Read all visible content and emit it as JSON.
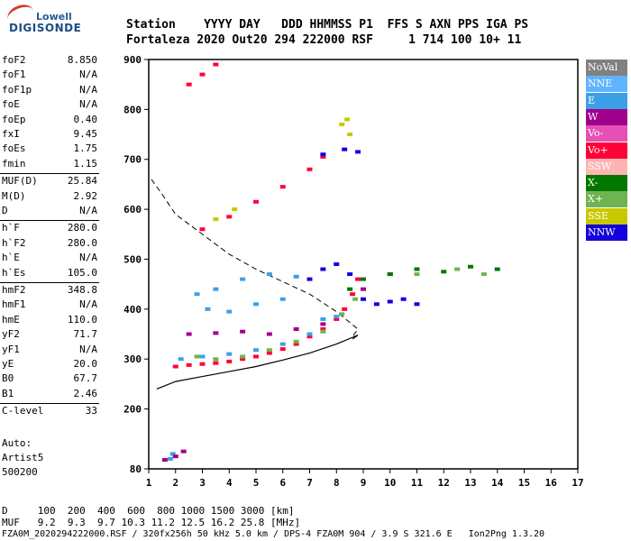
{
  "logo": {
    "top": "Lowell",
    "bottom": "DIGISONDE"
  },
  "header": {
    "line1": "Station    YYYY DAY   DDD HHMMSS P1  FFS S AXN PPS IGA PS",
    "line2": "Fortaleza 2020 Out20 294 222000 RSF     1 714 100 10+ 11"
  },
  "params": [
    {
      "k": "foF2",
      "v": "8.850"
    },
    {
      "k": "foF1",
      "v": "N/A"
    },
    {
      "k": "foF1p",
      "v": "N/A"
    },
    {
      "k": "foE",
      "v": "N/A"
    },
    {
      "k": "foEp",
      "v": "0.40"
    },
    {
      "k": "fxI",
      "v": "9.45"
    },
    {
      "k": "foEs",
      "v": "1.75"
    },
    {
      "k": "fmin",
      "v": "1.15"
    },
    {
      "k": "MUF(D)",
      "v": "25.84"
    },
    {
      "k": "M(D)",
      "v": "2.92"
    },
    {
      "k": "D",
      "v": "N/A"
    },
    {
      "k": "h`F",
      "v": "280.0"
    },
    {
      "k": "h`F2",
      "v": "280.0"
    },
    {
      "k": "h`E",
      "v": "N/A"
    },
    {
      "k": "h`Es",
      "v": "105.0"
    },
    {
      "k": "hmF2",
      "v": "348.8"
    },
    {
      "k": "hmF1",
      "v": "N/A"
    },
    {
      "k": "hmE",
      "v": "110.0"
    },
    {
      "k": "yF2",
      "v": "71.7"
    },
    {
      "k": "yF1",
      "v": "N/A"
    },
    {
      "k": "yE",
      "v": "20.0"
    },
    {
      "k": "B0",
      "v": "67.7"
    },
    {
      "k": "B1",
      "v": "2.46"
    },
    {
      "k": "C-level",
      "v": "33"
    }
  ],
  "auto": {
    "l1": "Auto:",
    "l2": "Artist5",
    "l3": "500200"
  },
  "bottom": {
    "d_row": "D     100  200  400  600  800 1000 1500 3000 [km]",
    "muf_row": "MUF   9.2  9.3  9.7 10.3 11.2 12.5 16.2 25.8 [MHz]",
    "file_row": "FZA0M_2020294222000.RSF / 320fx256h 50 kHz 5.0 km / DPS-4 FZA0M 904 / 3.9 S 321.6 E   Ion2Png 1.3.20"
  },
  "legend": [
    {
      "label": "NoVal",
      "color": "#808080"
    },
    {
      "label": "NNE",
      "color": "#5fb4ff"
    },
    {
      "label": "E",
      "color": "#3ca0e6"
    },
    {
      "label": "W",
      "color": "#a0008c"
    },
    {
      "label": "Vo-",
      "color": "#e650b4"
    },
    {
      "label": "Vo+",
      "color": "#ff0037"
    },
    {
      "label": "SSW",
      "color": "#ffb4b4"
    },
    {
      "label": "X-",
      "color": "#007800"
    },
    {
      "label": "X+",
      "color": "#6eb450"
    },
    {
      "label": "SSE",
      "color": "#c8c800"
    },
    {
      "label": "NNW",
      "color": "#1400dc"
    }
  ],
  "chart_data": {
    "type": "scatter",
    "title": "",
    "xlabel": "",
    "ylabel": "",
    "xlim": [
      1,
      17
    ],
    "ylim": [
      80,
      900
    ],
    "x_ticks": [
      1,
      2,
      3,
      4,
      5,
      6,
      7,
      8,
      9,
      10,
      11,
      12,
      13,
      14,
      15,
      16,
      17
    ],
    "y_ticks": [
      80,
      200,
      300,
      400,
      500,
      600,
      700,
      800,
      900
    ],
    "series": [
      {
        "name": "Vo+",
        "color": "#ff0037",
        "points": [
          [
            2.0,
            285
          ],
          [
            2.5,
            288
          ],
          [
            3,
            290
          ],
          [
            3.5,
            292
          ],
          [
            4,
            295
          ],
          [
            4.5,
            300
          ],
          [
            5,
            305
          ],
          [
            5.5,
            312
          ],
          [
            6,
            320
          ],
          [
            6.5,
            330
          ],
          [
            7,
            345
          ],
          [
            7.5,
            360
          ],
          [
            8,
            380
          ],
          [
            8.3,
            400
          ],
          [
            8.6,
            430
          ],
          [
            8.8,
            460
          ],
          [
            3,
            560
          ],
          [
            4,
            585
          ],
          [
            5,
            615
          ],
          [
            6,
            645
          ],
          [
            7,
            680
          ],
          [
            7.5,
            705
          ],
          [
            2.5,
            850
          ],
          [
            3,
            870
          ],
          [
            3.5,
            890
          ]
        ]
      },
      {
        "name": "E",
        "color": "#3ca0e6",
        "points": [
          [
            2.2,
            300
          ],
          [
            3,
            305
          ],
          [
            4,
            310
          ],
          [
            5,
            318
          ],
          [
            6,
            330
          ],
          [
            7,
            350
          ],
          [
            8,
            385
          ],
          [
            2.8,
            430
          ],
          [
            3.5,
            440
          ],
          [
            4.5,
            460
          ],
          [
            5.5,
            470
          ],
          [
            6.5,
            465
          ],
          [
            3.2,
            400
          ],
          [
            4,
            395
          ],
          [
            5,
            410
          ],
          [
            6,
            420
          ],
          [
            7.5,
            380
          ],
          [
            1.8,
            100
          ],
          [
            1.9,
            110
          ]
        ]
      },
      {
        "name": "W",
        "color": "#a0008c",
        "points": [
          [
            2.5,
            350
          ],
          [
            3.5,
            352
          ],
          [
            4.5,
            355
          ],
          [
            5.5,
            350
          ],
          [
            6.5,
            360
          ],
          [
            7.5,
            370
          ],
          [
            9.0,
            440
          ],
          [
            10,
            470
          ],
          [
            11,
            480
          ],
          [
            1.6,
            98
          ],
          [
            2.0,
            105
          ],
          [
            2.3,
            115
          ]
        ]
      },
      {
        "name": "X-",
        "color": "#007800",
        "points": [
          [
            8.5,
            440
          ],
          [
            9,
            460
          ],
          [
            10,
            470
          ],
          [
            11,
            480
          ],
          [
            12,
            475
          ],
          [
            13,
            485
          ],
          [
            14,
            480
          ]
        ]
      },
      {
        "name": "X+",
        "color": "#6eb450",
        "points": [
          [
            2.8,
            305
          ],
          [
            3.5,
            300
          ],
          [
            4.5,
            305
          ],
          [
            5.5,
            318
          ],
          [
            6.5,
            335
          ],
          [
            7.5,
            355
          ],
          [
            8.2,
            390
          ],
          [
            8.7,
            420
          ],
          [
            11,
            470
          ],
          [
            12.5,
            480
          ],
          [
            13.5,
            470
          ]
        ]
      },
      {
        "name": "NNW",
        "color": "#1400dc",
        "points": [
          [
            7,
            460
          ],
          [
            7.5,
            480
          ],
          [
            8,
            490
          ],
          [
            8.5,
            470
          ],
          [
            9,
            420
          ],
          [
            9.5,
            410
          ],
          [
            10,
            415
          ],
          [
            10.5,
            420
          ],
          [
            11,
            410
          ],
          [
            7.5,
            710
          ],
          [
            8.3,
            720
          ],
          [
            8.8,
            715
          ]
        ]
      },
      {
        "name": "SSE",
        "color": "#c8c800",
        "points": [
          [
            8.2,
            770
          ],
          [
            8.4,
            780
          ],
          [
            8.5,
            750
          ],
          [
            3.5,
            580
          ],
          [
            4.2,
            600
          ]
        ]
      }
    ]
  }
}
